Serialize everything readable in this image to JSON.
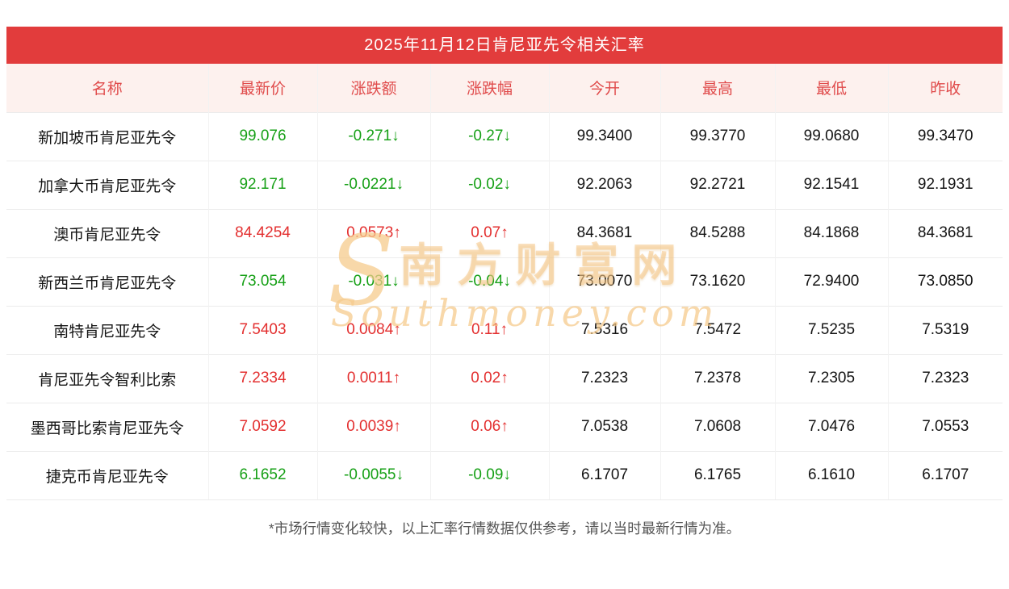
{
  "page": {
    "title": "2025年11月12日肯尼亚先令相关汇率",
    "footnote": "*市场行情变化较快，以上汇率行情数据仅供参考，请以当时最新行情为准。"
  },
  "watermark": {
    "cn": "南方财富网",
    "en": "Southmoney.com",
    "logo_glyph": "S"
  },
  "colors": {
    "accent": "#e23c3c",
    "up": "#e32f2f",
    "down": "#16a016",
    "header_bg": "#fdf1ee",
    "header_fg": "#e04b4b"
  },
  "table": {
    "headers": [
      "名称",
      "最新价",
      "涨跌额",
      "涨跌幅",
      "今开",
      "最高",
      "最低",
      "昨收"
    ],
    "rows": [
      {
        "name": "新加坡币肯尼亚先令",
        "latest": "99.076",
        "change": "-0.271↓",
        "pct": "-0.27↓",
        "open": "99.3400",
        "high": "99.3770",
        "low": "99.0680",
        "prev": "99.3470",
        "trend": "down"
      },
      {
        "name": "加拿大币肯尼亚先令",
        "latest": "92.171",
        "change": "-0.0221↓",
        "pct": "-0.02↓",
        "open": "92.2063",
        "high": "92.2721",
        "low": "92.1541",
        "prev": "92.1931",
        "trend": "down"
      },
      {
        "name": "澳币肯尼亚先令",
        "latest": "84.4254",
        "change": "0.0573↑",
        "pct": "0.07↑",
        "open": "84.3681",
        "high": "84.5288",
        "low": "84.1868",
        "prev": "84.3681",
        "trend": "up"
      },
      {
        "name": "新西兰币肯尼亚先令",
        "latest": "73.054",
        "change": "-0.031↓",
        "pct": "-0.04↓",
        "open": "73.0070",
        "high": "73.1620",
        "low": "72.9400",
        "prev": "73.0850",
        "trend": "down"
      },
      {
        "name": "南特肯尼亚先令",
        "latest": "7.5403",
        "change": "0.0084↑",
        "pct": "0.11↑",
        "open": "7.5316",
        "high": "7.5472",
        "low": "7.5235",
        "prev": "7.5319",
        "trend": "up"
      },
      {
        "name": "肯尼亚先令智利比索",
        "latest": "7.2334",
        "change": "0.0011↑",
        "pct": "0.02↑",
        "open": "7.2323",
        "high": "7.2378",
        "low": "7.2305",
        "prev": "7.2323",
        "trend": "up"
      },
      {
        "name": "墨西哥比索肯尼亚先令",
        "latest": "7.0592",
        "change": "0.0039↑",
        "pct": "0.06↑",
        "open": "7.0538",
        "high": "7.0608",
        "low": "7.0476",
        "prev": "7.0553",
        "trend": "up"
      },
      {
        "name": "捷克币肯尼亚先令",
        "latest": "6.1652",
        "change": "-0.0055↓",
        "pct": "-0.09↓",
        "open": "6.1707",
        "high": "6.1765",
        "low": "6.1610",
        "prev": "6.1707",
        "trend": "down"
      }
    ]
  }
}
